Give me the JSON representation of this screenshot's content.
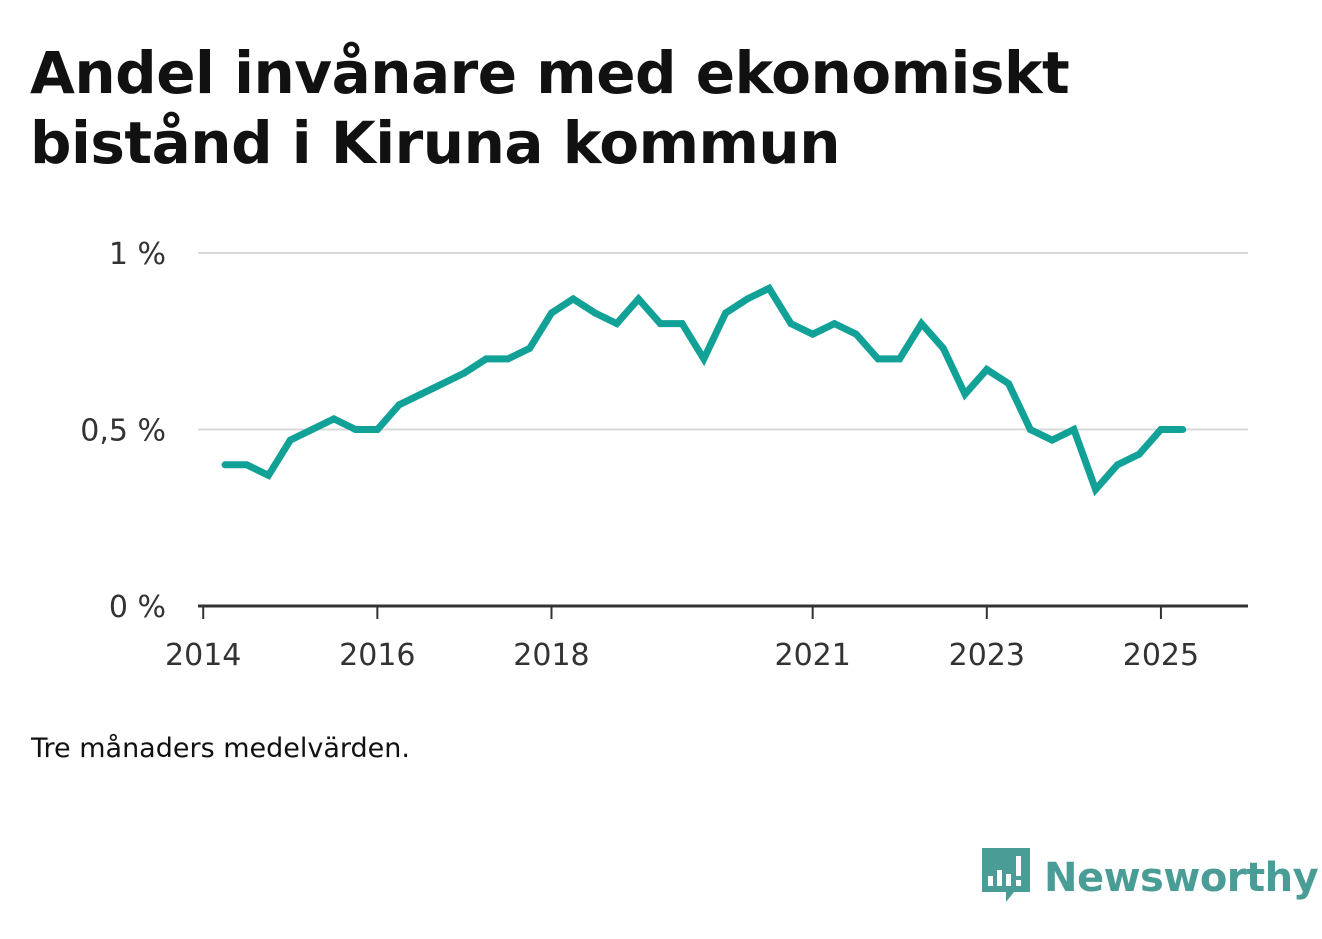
{
  "title_line1": "Andel invånare med ekonomiskt",
  "title_line2": "bistånd i Kiruna kommun",
  "note": "Tre månaders medelvärden.",
  "brand": {
    "name": "Newsworthy",
    "color": "#4a9d96"
  },
  "chart_data": {
    "type": "line",
    "title": "Andel invånare med ekonomiskt bistånd i Kiruna kommun",
    "ylim": [
      0,
      1
    ],
    "yticks": [
      {
        "value": 0,
        "label": "0 %"
      },
      {
        "value": 0.5,
        "label": "0,5 %"
      },
      {
        "value": 1,
        "label": "1 %"
      }
    ],
    "xlim": [
      2013.94,
      2026.0
    ],
    "xticks": [
      {
        "value": 2014,
        "label": "2014"
      },
      {
        "value": 2016,
        "label": "2016"
      },
      {
        "value": 2018,
        "label": "2018"
      },
      {
        "value": 2021,
        "label": "2021"
      },
      {
        "value": 2023,
        "label": "2023"
      },
      {
        "value": 2025,
        "label": "2025"
      }
    ],
    "grid": true,
    "series": [
      {
        "color": "#12a197",
        "x": [
          2014.25,
          2014.5,
          2014.75,
          2015.0,
          2015.25,
          2015.5,
          2015.75,
          2016.0,
          2016.25,
          2016.5,
          2016.75,
          2017.0,
          2017.25,
          2017.5,
          2017.75,
          2018.0,
          2018.25,
          2018.5,
          2018.75,
          2019.0,
          2019.25,
          2019.5,
          2019.75,
          2020.0,
          2020.25,
          2020.5,
          2020.75,
          2021.0,
          2021.25,
          2021.5,
          2021.75,
          2022.0,
          2022.25,
          2022.5,
          2022.75,
          2023.0,
          2023.25,
          2023.5,
          2023.75,
          2024.0,
          2024.25,
          2024.5,
          2024.75,
          2025.0,
          2025.25
        ],
        "y": [
          0.4,
          0.4,
          0.37,
          0.47,
          0.5,
          0.53,
          0.5,
          0.5,
          0.57,
          0.6,
          0.63,
          0.66,
          0.7,
          0.7,
          0.73,
          0.83,
          0.87,
          0.83,
          0.8,
          0.87,
          0.8,
          0.8,
          0.7,
          0.83,
          0.87,
          0.9,
          0.8,
          0.77,
          0.8,
          0.77,
          0.7,
          0.7,
          0.8,
          0.73,
          0.6,
          0.67,
          0.63,
          0.5,
          0.47,
          0.5,
          0.33,
          0.4,
          0.43,
          0.5,
          0.5
        ]
      }
    ]
  }
}
